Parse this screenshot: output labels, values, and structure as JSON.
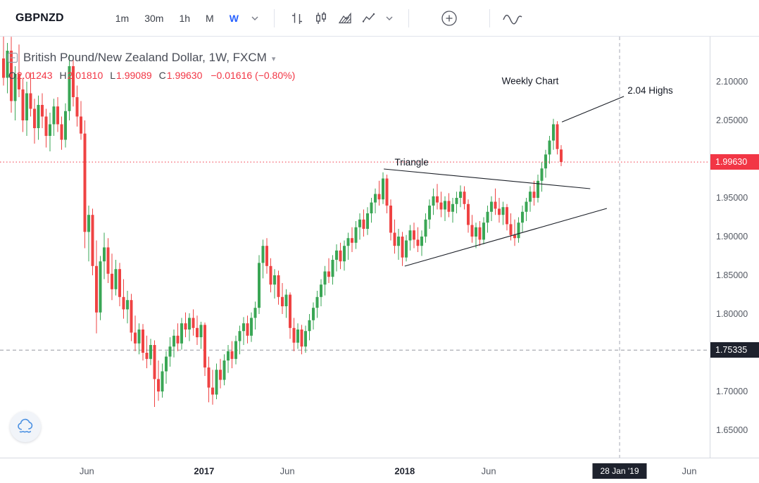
{
  "toolbar": {
    "symbol": "GBPNZD",
    "intervals": [
      "1m",
      "30m",
      "1h",
      "M",
      "W"
    ],
    "active_interval": "W",
    "icons": [
      "interval-dropdown-icon",
      "bars-icon",
      "hollow-candles-icon",
      "area-chart-icon",
      "line-chart-icon",
      "style-dropdown-icon",
      "compare-add-icon",
      "indicators-wave-icon"
    ]
  },
  "legend": {
    "title": "British Pound/New Zealand Dollar, 1W, FXCM",
    "o_label": "O",
    "o": "2.01243",
    "h_label": "H",
    "h": "2.01810",
    "l_label": "L",
    "l": "1.99089",
    "c_label": "C",
    "c": "1.99630",
    "change": "−0.01616 (−0.80%)"
  },
  "misc_icons": [
    "legend-collapse-icon",
    "legend-dropdown-icon",
    "cloud-icon"
  ],
  "chart_data": {
    "type": "candlestick",
    "title": "British Pound/New Zealand Dollar, 1W, FXCM",
    "symbol": "GBPNZD",
    "interval": "1W",
    "provider": "FXCM",
    "last": {
      "open": 2.01243,
      "high": 2.0181,
      "low": 1.99089,
      "close": 1.9963,
      "change": "−0.01616 (−0.80%)"
    },
    "last_price": 1.9963,
    "support_level": 1.75335,
    "ylim": [
      1.614,
      2.158
    ],
    "price_axis": {
      "ticks": [
        2.1,
        2.05,
        2.0,
        1.95,
        1.9,
        1.85,
        1.8,
        1.75,
        1.7,
        1.65
      ],
      "decimals": 5
    },
    "time_axis": {
      "ticks": [
        {
          "label": "Jun",
          "week": 21.5,
          "bold": false
        },
        {
          "label": "2017",
          "week": 51.8,
          "bold": true
        },
        {
          "label": "Jun",
          "week": 73.3,
          "bold": false
        },
        {
          "label": "2018",
          "week": 103.6,
          "bold": true
        },
        {
          "label": "Jun",
          "week": 125.3,
          "bold": false
        },
        {
          "label": "Jun",
          "week": 177.1,
          "bold": false
        }
      ],
      "marker": {
        "label": "28 Jan '19",
        "week": 159.1
      }
    },
    "colors": {
      "up": "#3aa655",
      "down": "#ef4343",
      "last_price_badge": "#f23645",
      "marker_badge": "#1e222d",
      "support_line": "#9598a1",
      "future_line": "#a7aab4",
      "annotation": "#1b1f27",
      "accent_blue": "#2962ff"
    },
    "annotations": {
      "texts": [
        {
          "text": "Weekly Chart",
          "week": 136.0,
          "price": 2.1,
          "anchor": "middle"
        },
        {
          "text": "2.04 Highs",
          "week": 167.0,
          "price": 2.088,
          "anchor": "middle"
        },
        {
          "text": "Triangle",
          "week": 101.0,
          "price": 1.995,
          "anchor": "start"
        }
      ],
      "lines": [
        {
          "name": "triangle-upper-trendline",
          "w1": 98.2,
          "p1": 1.9873,
          "w2": 151.5,
          "p2": 1.9618
        },
        {
          "name": "triangle-lower-trendline",
          "w1": 103.6,
          "p1": 1.8618,
          "w2": 155.8,
          "p2": 1.9364
        },
        {
          "name": "highs-pointer-line",
          "w1": 144.2,
          "p1": 2.048,
          "w2": 160.2,
          "p2": 2.081
        }
      ]
    },
    "candles": [
      [
        2.13,
        2.16,
        2.095,
        2.105
      ],
      [
        2.105,
        2.15,
        2.085,
        2.14
      ],
      [
        2.14,
        2.158,
        2.06,
        2.075
      ],
      [
        2.075,
        2.12,
        2.05,
        2.11
      ],
      [
        2.11,
        2.148,
        2.08,
        2.09
      ],
      [
        2.09,
        2.105,
        2.035,
        2.05
      ],
      [
        2.05,
        2.1,
        2.03,
        2.085
      ],
      [
        2.085,
        2.112,
        2.055,
        2.065
      ],
      [
        2.065,
        2.078,
        2.02,
        2.04
      ],
      [
        2.04,
        2.082,
        2.025,
        2.07
      ],
      [
        2.07,
        2.085,
        2.04,
        2.055
      ],
      [
        2.055,
        2.065,
        2.015,
        2.03
      ],
      [
        2.03,
        2.06,
        2.01,
        2.045
      ],
      [
        2.045,
        2.078,
        2.03,
        2.068
      ],
      [
        2.068,
        2.08,
        2.035,
        2.045
      ],
      [
        2.045,
        2.055,
        2.012,
        2.025
      ],
      [
        2.025,
        2.072,
        2.015,
        2.062
      ],
      [
        2.062,
        2.135,
        2.05,
        2.12
      ],
      [
        2.12,
        2.132,
        2.068,
        2.08
      ],
      [
        2.08,
        2.095,
        2.042,
        2.055
      ],
      [
        2.055,
        2.075,
        2.025,
        2.033
      ],
      [
        2.033,
        2.05,
        1.885,
        1.906
      ],
      [
        1.906,
        1.94,
        1.868,
        1.928
      ],
      [
        1.928,
        1.936,
        1.85,
        1.862
      ],
      [
        1.862,
        1.895,
        1.775,
        1.802
      ],
      [
        1.802,
        1.875,
        1.792,
        1.868
      ],
      [
        1.868,
        1.905,
        1.845,
        1.886
      ],
      [
        1.886,
        1.898,
        1.84,
        1.852
      ],
      [
        1.852,
        1.878,
        1.818,
        1.832
      ],
      [
        1.832,
        1.87,
        1.824,
        1.858
      ],
      [
        1.858,
        1.866,
        1.81,
        1.822
      ],
      [
        1.822,
        1.845,
        1.794,
        1.806
      ],
      [
        1.806,
        1.83,
        1.788,
        1.818
      ],
      [
        1.818,
        1.826,
        1.765,
        1.776
      ],
      [
        1.776,
        1.798,
        1.752,
        1.762
      ],
      [
        1.762,
        1.788,
        1.748,
        1.78
      ],
      [
        1.78,
        1.787,
        1.74,
        1.75
      ],
      [
        1.75,
        1.772,
        1.73,
        1.742
      ],
      [
        1.742,
        1.768,
        1.734,
        1.76
      ],
      [
        1.76,
        1.766,
        1.68,
        1.716
      ],
      [
        1.716,
        1.74,
        1.688,
        1.7
      ],
      [
        1.7,
        1.736,
        1.692,
        1.726
      ],
      [
        1.726,
        1.752,
        1.71,
        1.745
      ],
      [
        1.745,
        1.77,
        1.732,
        1.758
      ],
      [
        1.758,
        1.78,
        1.744,
        1.772
      ],
      [
        1.772,
        1.788,
        1.752,
        1.762
      ],
      [
        1.762,
        1.795,
        1.754,
        1.788
      ],
      [
        1.788,
        1.802,
        1.77,
        1.78
      ],
      [
        1.78,
        1.801,
        1.765,
        1.795
      ],
      [
        1.795,
        1.806,
        1.772,
        1.782
      ],
      [
        1.782,
        1.798,
        1.76,
        1.77
      ],
      [
        1.77,
        1.79,
        1.755,
        1.786
      ],
      [
        1.786,
        1.789,
        1.72,
        1.731
      ],
      [
        1.731,
        1.745,
        1.686,
        1.705
      ],
      [
        1.705,
        1.728,
        1.683,
        1.696
      ],
      [
        1.696,
        1.736,
        1.69,
        1.728
      ],
      [
        1.728,
        1.742,
        1.704,
        1.715
      ],
      [
        1.715,
        1.748,
        1.708,
        1.74
      ],
      [
        1.74,
        1.76,
        1.724,
        1.752
      ],
      [
        1.752,
        1.765,
        1.73,
        1.742
      ],
      [
        1.742,
        1.772,
        1.735,
        1.765
      ],
      [
        1.765,
        1.785,
        1.748,
        1.778
      ],
      [
        1.778,
        1.796,
        1.76,
        1.788
      ],
      [
        1.788,
        1.798,
        1.762,
        1.772
      ],
      [
        1.772,
        1.802,
        1.764,
        1.795
      ],
      [
        1.795,
        1.816,
        1.78,
        1.808
      ],
      [
        1.808,
        1.876,
        1.8,
        1.866
      ],
      [
        1.866,
        1.896,
        1.846,
        1.888
      ],
      [
        1.888,
        1.898,
        1.852,
        1.862
      ],
      [
        1.862,
        1.872,
        1.828,
        1.838
      ],
      [
        1.838,
        1.858,
        1.82,
        1.85
      ],
      [
        1.85,
        1.856,
        1.812,
        1.822
      ],
      [
        1.822,
        1.84,
        1.8,
        1.81
      ],
      [
        1.81,
        1.832,
        1.795,
        1.825
      ],
      [
        1.825,
        1.828,
        1.768,
        1.782
      ],
      [
        1.782,
        1.795,
        1.752,
        1.763
      ],
      [
        1.763,
        1.788,
        1.755,
        1.78
      ],
      [
        1.78,
        1.786,
        1.748,
        1.758
      ],
      [
        1.758,
        1.785,
        1.75,
        1.778
      ],
      [
        1.778,
        1.8,
        1.766,
        1.792
      ],
      [
        1.792,
        1.815,
        1.78,
        1.808
      ],
      [
        1.808,
        1.83,
        1.795,
        1.822
      ],
      [
        1.822,
        1.845,
        1.81,
        1.838
      ],
      [
        1.838,
        1.862,
        1.824,
        1.855
      ],
      [
        1.855,
        1.872,
        1.84,
        1.848
      ],
      [
        1.848,
        1.876,
        1.838,
        1.87
      ],
      [
        1.87,
        1.89,
        1.855,
        1.882
      ],
      [
        1.882,
        1.892,
        1.858,
        1.868
      ],
      [
        1.868,
        1.895,
        1.856,
        1.888
      ],
      [
        1.888,
        1.905,
        1.87,
        1.898
      ],
      [
        1.898,
        1.912,
        1.88,
        1.892
      ],
      [
        1.892,
        1.92,
        1.884,
        1.912
      ],
      [
        1.912,
        1.93,
        1.896,
        1.922
      ],
      [
        1.922,
        1.935,
        1.9,
        1.91
      ],
      [
        1.91,
        1.938,
        1.902,
        1.93
      ],
      [
        1.93,
        1.95,
        1.918,
        1.944
      ],
      [
        1.944,
        1.962,
        1.93,
        1.955
      ],
      [
        1.955,
        1.972,
        1.94,
        1.948
      ],
      [
        1.948,
        1.983,
        1.942,
        1.975
      ],
      [
        1.975,
        1.98,
        1.93,
        1.94
      ],
      [
        1.94,
        1.948,
        1.895,
        1.905
      ],
      [
        1.905,
        1.922,
        1.878,
        1.888
      ],
      [
        1.888,
        1.91,
        1.87,
        1.9
      ],
      [
        1.9,
        1.906,
        1.862,
        1.873
      ],
      [
        1.873,
        1.902,
        1.868,
        1.895
      ],
      [
        1.895,
        1.915,
        1.882,
        1.908
      ],
      [
        1.908,
        1.918,
        1.885,
        1.896
      ],
      [
        1.896,
        1.912,
        1.88,
        1.888
      ],
      [
        1.888,
        1.908,
        1.875,
        1.9
      ],
      [
        1.9,
        1.93,
        1.892,
        1.922
      ],
      [
        1.922,
        1.948,
        1.91,
        1.94
      ],
      [
        1.94,
        1.962,
        1.928,
        1.952
      ],
      [
        1.952,
        1.968,
        1.935,
        1.944
      ],
      [
        1.944,
        1.958,
        1.925,
        1.935
      ],
      [
        1.935,
        1.952,
        1.92,
        1.946
      ],
      [
        1.946,
        1.956,
        1.925,
        1.932
      ],
      [
        1.932,
        1.95,
        1.918,
        1.942
      ],
      [
        1.942,
        1.958,
        1.93,
        1.95
      ],
      [
        1.95,
        1.966,
        1.938,
        1.958
      ],
      [
        1.958,
        1.965,
        1.935,
        1.942
      ],
      [
        1.942,
        1.948,
        1.905,
        1.915
      ],
      [
        1.915,
        1.928,
        1.892,
        1.9
      ],
      [
        1.9,
        1.918,
        1.885,
        1.912
      ],
      [
        1.912,
        1.92,
        1.888,
        1.896
      ],
      [
        1.896,
        1.925,
        1.89,
        1.918
      ],
      [
        1.918,
        1.94,
        1.905,
        1.932
      ],
      [
        1.932,
        1.952,
        1.92,
        1.945
      ],
      [
        1.945,
        1.962,
        1.928,
        1.936
      ],
      [
        1.936,
        1.95,
        1.918,
        1.928
      ],
      [
        1.928,
        1.945,
        1.915,
        1.938
      ],
      [
        1.938,
        1.942,
        1.908,
        1.916
      ],
      [
        1.916,
        1.93,
        1.895,
        1.902
      ],
      [
        1.902,
        1.922,
        1.888,
        1.898
      ],
      [
        1.898,
        1.925,
        1.892,
        1.918
      ],
      [
        1.918,
        1.94,
        1.906,
        1.932
      ],
      [
        1.932,
        1.95,
        1.92,
        1.945
      ],
      [
        1.945,
        1.965,
        1.932,
        1.958
      ],
      [
        1.958,
        1.972,
        1.94,
        1.95
      ],
      [
        1.95,
        1.98,
        1.944,
        1.972
      ],
      [
        1.972,
        1.996,
        1.958,
        1.988
      ],
      [
        1.988,
        2.012,
        1.976,
        2.006
      ],
      [
        2.006,
        2.03,
        1.994,
        2.024
      ],
      [
        2.024,
        2.052,
        2.012,
        2.045
      ],
      [
        2.045,
        2.049,
        2.006,
        2.013
      ],
      [
        2.01243,
        2.0181,
        1.99089,
        1.9963
      ]
    ]
  }
}
